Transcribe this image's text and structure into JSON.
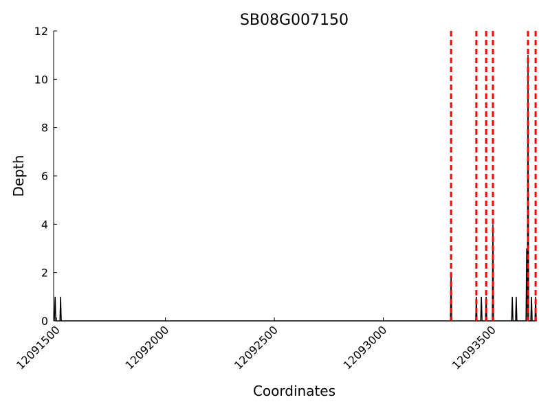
{
  "chart_data": {
    "type": "line",
    "title": "SB08G007150",
    "x_label": "Coordinates",
    "y_label": "Depth",
    "x": [
      12091490,
      12091494,
      12091497,
      12091516,
      12091519,
      12091522,
      12093308,
      12093311,
      12093314,
      12093424,
      12093427,
      12093430,
      12093447,
      12093450,
      12093453,
      12093469,
      12093472,
      12093475,
      12093500,
      12093503,
      12093506,
      12093589,
      12093592,
      12093595,
      12093607,
      12093610,
      12093613,
      12093655,
      12093658,
      12093661,
      12093664,
      12093667,
      12093677,
      12093680,
      12093683,
      12093696,
      12093699,
      12093702
    ],
    "series": [
      {
        "name": "Depth",
        "color": "#000000",
        "values": [
          0,
          1,
          0,
          0,
          1,
          0,
          0,
          2,
          0,
          0,
          1,
          0,
          0,
          1,
          0,
          0,
          1,
          0,
          0,
          4,
          0,
          0,
          1,
          0,
          0,
          1,
          0,
          0,
          3,
          0,
          11,
          0,
          0,
          1,
          0,
          0,
          1,
          0
        ]
      }
    ],
    "vlines": {
      "color": "#ff0000",
      "dashed": true,
      "x": [
        12093311,
        12093427,
        12093472,
        12093503,
        12093664,
        12093699
      ]
    },
    "xlim": [
      12091487,
      12093705
    ],
    "ylim": [
      0,
      12
    ],
    "xticks": [
      12091500,
      12092000,
      12092500,
      12093000,
      12093500
    ],
    "yticks": [
      0,
      2,
      4,
      6,
      8,
      10,
      12
    ]
  }
}
